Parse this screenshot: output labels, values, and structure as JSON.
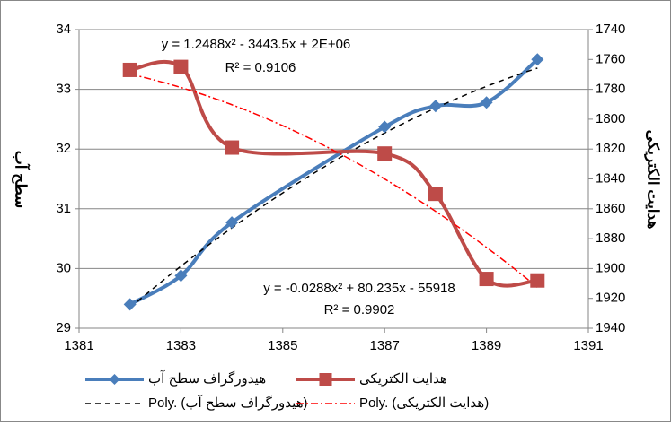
{
  "chart_data": {
    "type": "line",
    "x": [
      1382,
      1383,
      1384,
      1387,
      1388,
      1389,
      1390
    ],
    "series": [
      {
        "name": "هیدورگراف سطح آب",
        "color": "#4a7ebb",
        "marker": "diamond",
        "values": [
          29.4,
          29.88,
          30.77,
          32.37,
          32.72,
          32.78,
          33.5
        ]
      },
      {
        "name": "هدایت الکتریکی",
        "color": "#be4b48",
        "marker": "square",
        "axis": "y2",
        "values": [
          1767,
          1765,
          1819,
          1823,
          1850,
          1907,
          1908
        ]
      }
    ],
    "trendlines": [
      {
        "name": "Poly. (هیدورگراف سطح آب)",
        "color": "#000000",
        "dash": "6,5",
        "equation": "y = -0.0288x² + 80.235x - 55918",
        "r2": "R² = 0.9902"
      },
      {
        "name": "Poly. (هدایت الکتریکی)",
        "color": "#ff0000",
        "dash": "8,3,2,3",
        "equation": "y = 1.2488x² - 3443.5x + 2E+06",
        "r2": "R² = 0.9106"
      }
    ],
    "ylabel": "سطح آب",
    "y2label": "هدایت الکتریکی",
    "xlim": [
      1381,
      1391
    ],
    "xticks": [
      1381,
      1383,
      1385,
      1387,
      1389,
      1391
    ],
    "ylim": [
      29,
      34
    ],
    "yticks": [
      29,
      30,
      31,
      32,
      33,
      34
    ],
    "y2lim": [
      1940,
      1740
    ],
    "y2ticks": [
      1740,
      1760,
      1780,
      1800,
      1820,
      1840,
      1860,
      1880,
      1900,
      1920,
      1940
    ],
    "grid": true,
    "legend": "bottom"
  }
}
